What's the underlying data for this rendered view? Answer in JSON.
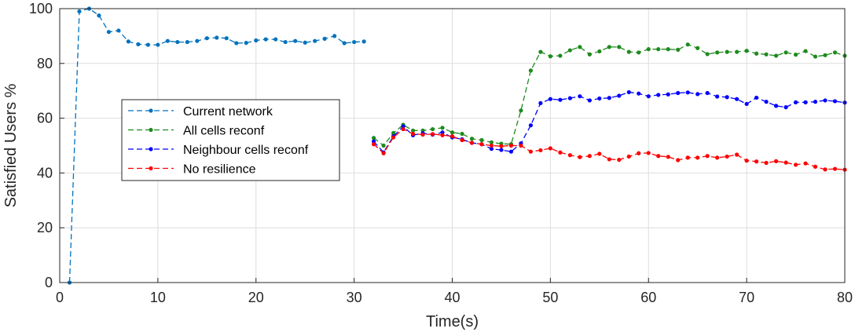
{
  "chart_data": {
    "type": "line",
    "title": "",
    "xlabel": "Time(s)",
    "ylabel": "Satisfied Users %",
    "xlim": [
      0,
      80
    ],
    "ylim": [
      0,
      100
    ],
    "xticks": [
      0,
      10,
      20,
      30,
      40,
      50,
      60,
      70,
      80
    ],
    "yticks": [
      0,
      20,
      40,
      60,
      80,
      100
    ],
    "grid": true,
    "legend_position": "left-middle",
    "series": [
      {
        "name": "Current network",
        "color": "#0072BD",
        "x": [
          1,
          2,
          3,
          4,
          5,
          6,
          7,
          8,
          9,
          10,
          11,
          12,
          13,
          14,
          15,
          16,
          17,
          18,
          19,
          20,
          21,
          22,
          23,
          24,
          25,
          26,
          27,
          28,
          29,
          30,
          31
        ],
        "values": [
          0,
          99,
          100,
          97.5,
          91.5,
          92,
          88,
          87,
          86.8,
          86.8,
          88.2,
          87.8,
          87.8,
          88.2,
          89.2,
          89.4,
          89.2,
          87.4,
          87.5,
          88.4,
          88.8,
          88.8,
          87.8,
          88.2,
          87.6,
          88.2,
          89,
          90,
          87.4,
          87.8,
          88
        ]
      },
      {
        "name": "All cells reconf",
        "color": "#1E8A1E",
        "x": [
          32,
          33,
          34,
          35,
          36,
          37,
          38,
          39,
          40,
          41,
          42,
          43,
          44,
          45,
          46,
          47,
          48,
          49,
          50,
          51,
          52,
          53,
          54,
          55,
          56,
          57,
          58,
          59,
          60,
          61,
          62,
          63,
          64,
          65,
          66,
          67,
          68,
          69,
          70,
          71,
          72,
          73,
          74,
          75,
          76,
          77,
          78,
          79,
          80
        ],
        "values": [
          52.8,
          50,
          54.6,
          57.6,
          55.5,
          55.5,
          56,
          56.5,
          54.8,
          54.3,
          52.5,
          52,
          51.2,
          50.7,
          50.5,
          62.8,
          77.4,
          84.2,
          82.6,
          82.8,
          84.8,
          86,
          83.3,
          84.4,
          86,
          86,
          84.2,
          84,
          85.2,
          85.2,
          85.2,
          85,
          86.9,
          85.6,
          83.4,
          84,
          84.2,
          84.2,
          84.6,
          83.6,
          83.3,
          82.8,
          84,
          83.2,
          84.5,
          82.5,
          83,
          84,
          82.8
        ]
      },
      {
        "name": "Neighbour cells reconf",
        "color": "#0000FF",
        "x": [
          32,
          33,
          34,
          35,
          36,
          37,
          38,
          39,
          40,
          41,
          42,
          43,
          44,
          45,
          46,
          47,
          48,
          49,
          50,
          51,
          52,
          53,
          54,
          55,
          56,
          57,
          58,
          59,
          60,
          61,
          62,
          63,
          64,
          65,
          66,
          67,
          68,
          69,
          70,
          71,
          72,
          73,
          74,
          75,
          76,
          77,
          78,
          79,
          80
        ],
        "values": [
          51.5,
          47.5,
          53.4,
          57,
          53.8,
          54.5,
          54,
          54.8,
          53,
          52.3,
          51,
          50.5,
          48.8,
          48.4,
          47.8,
          50.8,
          57.4,
          65.5,
          67,
          66.7,
          67.3,
          68,
          66.5,
          67.2,
          67.4,
          68.2,
          69.5,
          69,
          68,
          68.5,
          68.7,
          69.2,
          69.4,
          68.8,
          69.2,
          67.9,
          67.7,
          67,
          65.2,
          67.5,
          66,
          64.5,
          64,
          65.8,
          65.8,
          66,
          66.5,
          66.2,
          65.7
        ]
      },
      {
        "name": "No resilience",
        "color": "#FF0000",
        "x": [
          32,
          33,
          34,
          35,
          36,
          37,
          38,
          39,
          40,
          41,
          42,
          43,
          44,
          45,
          46,
          47,
          48,
          49,
          50,
          51,
          52,
          53,
          54,
          55,
          56,
          57,
          58,
          59,
          60,
          61,
          62,
          63,
          64,
          65,
          66,
          67,
          68,
          69,
          70,
          71,
          72,
          73,
          74,
          75,
          76,
          77,
          78,
          79,
          80
        ],
        "values": [
          50.5,
          47.2,
          53,
          56,
          54.3,
          54,
          54.2,
          53.8,
          53.4,
          52,
          51,
          50.5,
          50,
          49.8,
          50,
          50,
          47.8,
          48.3,
          49,
          47.5,
          46.5,
          45.8,
          46.2,
          47,
          45,
          44.8,
          46,
          47.2,
          47.3,
          46.2,
          45.9,
          44.7,
          45.6,
          45.6,
          46.2,
          45.6,
          46,
          46.7,
          44.5,
          44.2,
          43.7,
          44.3,
          43.8,
          43,
          43.5,
          42.3,
          41.3,
          41.5,
          41.2
        ]
      }
    ]
  }
}
